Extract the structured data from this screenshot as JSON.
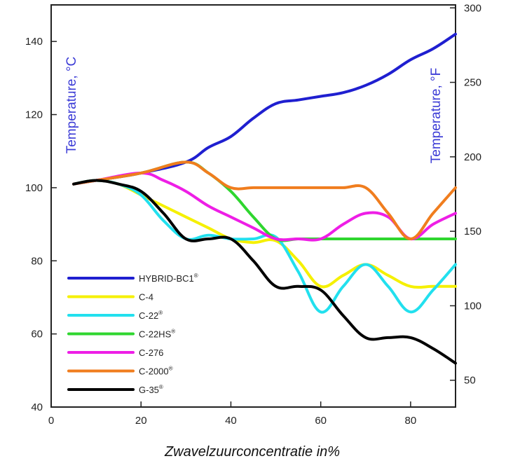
{
  "chart_data": {
    "type": "line",
    "xlabel": "Zwavelzuurconcentratie in%",
    "ylabel_left": "Temperature, °C",
    "ylabel_right": "Temperature, °F",
    "xlim": [
      0,
      90
    ],
    "ylim": [
      40,
      150
    ],
    "ylim_right": [
      32,
      302
    ],
    "x_ticks": [
      0,
      20,
      40,
      60,
      80
    ],
    "y_ticks": [
      40,
      60,
      80,
      100,
      120,
      140
    ],
    "y_ticks_right": [
      50,
      100,
      150,
      200,
      250,
      300
    ],
    "grid": false,
    "legend_position": "bottom-left",
    "series": [
      {
        "name": "HYBRID-BC1",
        "sup": "®",
        "color": "#1f1fd0",
        "x": [
          5,
          10,
          20,
          30,
          35,
          40,
          45,
          50,
          55,
          60,
          65,
          70,
          75,
          80,
          85,
          90
        ],
        "y": [
          101,
          102,
          104,
          107,
          111,
          114,
          119,
          123,
          124,
          125,
          126,
          128,
          131,
          135,
          138,
          142
        ]
      },
      {
        "name": "C-4",
        "sup": "",
        "color": "#f5f000",
        "x": [
          5,
          10,
          15,
          20,
          25,
          30,
          35,
          40,
          45,
          50,
          55,
          60,
          65,
          70,
          75,
          80,
          85,
          90
        ],
        "y": [
          101,
          102,
          101,
          98,
          95,
          92,
          89,
          86,
          85,
          85.5,
          80,
          73,
          76,
          79,
          76,
          73,
          73,
          73
        ]
      },
      {
        "name": "C-22",
        "sup": "®",
        "color": "#22e0ee",
        "x": [
          5,
          10,
          15,
          20,
          25,
          30,
          35,
          40,
          45,
          50,
          55,
          60,
          65,
          70,
          75,
          80,
          85,
          90
        ],
        "y": [
          101,
          102,
          101,
          98,
          91,
          86,
          87,
          86,
          86,
          86.5,
          77,
          66,
          73,
          79,
          73,
          66,
          72,
          79
        ]
      },
      {
        "name": "C-22HS",
        "sup": "®",
        "color": "#2fd62f",
        "x": [
          5,
          10,
          20,
          30,
          35,
          40,
          45,
          50,
          55,
          60,
          70,
          80,
          90
        ],
        "y": [
          101,
          102,
          104,
          107,
          104,
          99,
          92,
          86,
          86,
          86,
          86,
          86,
          86
        ]
      },
      {
        "name": "C-276",
        "sup": "",
        "color": "#ee1ee6",
        "x": [
          5,
          10,
          20,
          25,
          30,
          35,
          40,
          45,
          50,
          55,
          60,
          65,
          70,
          75,
          80,
          85,
          90
        ],
        "y": [
          101,
          102,
          104,
          102,
          99,
          95,
          92,
          89,
          86,
          86,
          86,
          90,
          93,
          92,
          86,
          90,
          93
        ]
      },
      {
        "name": "C-2000",
        "sup": "®",
        "color": "#f07d1e",
        "x": [
          5,
          10,
          20,
          30,
          35,
          40,
          45,
          50,
          55,
          60,
          65,
          70,
          75,
          80,
          85,
          90
        ],
        "y": [
          101,
          102,
          104,
          107,
          104,
          100,
          100,
          100,
          100,
          100,
          100,
          100,
          93,
          86,
          93,
          100
        ]
      },
      {
        "name": "G-35",
        "sup": "®",
        "color": "#000000",
        "x": [
          5,
          10,
          15,
          20,
          25,
          30,
          35,
          40,
          45,
          50,
          55,
          60,
          65,
          70,
          75,
          80,
          85,
          90
        ],
        "y": [
          101,
          102,
          101,
          99,
          93,
          86,
          86,
          86,
          80,
          73,
          73,
          72,
          65,
          59,
          59,
          59,
          56,
          52
        ]
      }
    ]
  }
}
